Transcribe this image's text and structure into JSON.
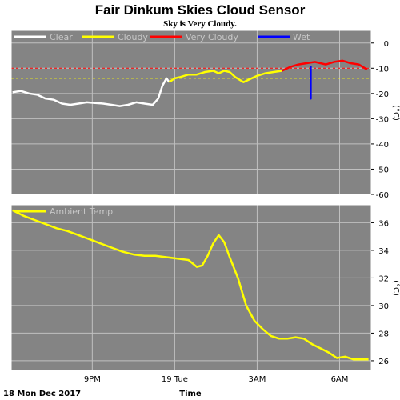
{
  "title": "Fair Dinkum Skies Cloud Sensor",
  "subtitle": "Sky is Very Cloudy.",
  "footer": {
    "date": "18 Mon Dec 2017",
    "xlabel": "Time"
  },
  "colors": {
    "plot_bg": "#848484",
    "grid": "#c0c0c0",
    "clear": "#ffffff",
    "cloudy": "#ffff00",
    "very_cloudy": "#ff0000",
    "wet": "#0000ff",
    "ambient": "#ffff00",
    "frame": "#ffffff"
  },
  "chart_data": [
    {
      "type": "line",
      "ylabel": "(°C)",
      "ylim": [
        -60,
        5
      ],
      "yticks": [
        0,
        -10,
        -20,
        -30,
        -40,
        -50,
        -60
      ],
      "xlim": [
        18.05,
        31.15
      ],
      "xticks": [
        {
          "x": 21,
          "label": "9PM"
        },
        {
          "x": 24,
          "label": "19 Tue"
        },
        {
          "x": 27,
          "label": "3AM"
        },
        {
          "x": 30,
          "label": "6AM"
        }
      ],
      "grid": true,
      "legend": "top-left",
      "threshold_lines": [
        {
          "y": -10,
          "color": "#ff0000"
        },
        {
          "y": -14,
          "color": "#ffff00"
        }
      ],
      "series": [
        {
          "name": "Clear",
          "color": "#ffffff",
          "values": [
            [
              18.1,
              -19.5
            ],
            [
              18.4,
              -19
            ],
            [
              18.7,
              -20
            ],
            [
              19,
              -20.5
            ],
            [
              19.3,
              -22
            ],
            [
              19.6,
              -22.5
            ],
            [
              19.9,
              -24
            ],
            [
              20.2,
              -24.5
            ],
            [
              20.5,
              -24
            ],
            [
              20.8,
              -23.5
            ],
            [
              21.1,
              -23.8
            ],
            [
              21.4,
              -24
            ],
            [
              21.7,
              -24.5
            ],
            [
              22,
              -25
            ],
            [
              22.3,
              -24.5
            ],
            [
              22.6,
              -23.5
            ],
            [
              22.9,
              -24
            ],
            [
              23.2,
              -24.5
            ],
            [
              23.4,
              -22
            ],
            [
              23.55,
              -17
            ],
            [
              23.7,
              -14
            ],
            [
              23.8,
              -15.5
            ]
          ]
        },
        {
          "name": "Cloudy",
          "color": "#ffff00",
          "values": [
            [
              23.8,
              -15.5
            ],
            [
              24,
              -14
            ],
            [
              24.2,
              -13.5
            ],
            [
              24.5,
              -12.5
            ],
            [
              24.8,
              -12.5
            ],
            [
              25.1,
              -11.5
            ],
            [
              25.4,
              -11
            ],
            [
              25.6,
              -12
            ],
            [
              25.8,
              -11
            ],
            [
              26,
              -11.5
            ],
            [
              26.2,
              -13.5
            ],
            [
              26.5,
              -15.5
            ],
            [
              26.8,
              -14
            ],
            [
              27,
              -13
            ],
            [
              27.3,
              -12
            ],
            [
              27.6,
              -11.5
            ],
            [
              27.9,
              -11
            ]
          ]
        },
        {
          "name": "Very Cloudy",
          "color": "#ff0000",
          "values": [
            [
              27.9,
              -11
            ],
            [
              28.2,
              -9.5
            ],
            [
              28.5,
              -8.5
            ],
            [
              28.8,
              -8
            ],
            [
              29.1,
              -7.5
            ],
            [
              29.3,
              -8
            ],
            [
              29.5,
              -8.5
            ],
            [
              29.8,
              -7.5
            ],
            [
              30.1,
              -7
            ],
            [
              30.4,
              -8
            ],
            [
              30.7,
              -8.5
            ],
            [
              31,
              -10.5
            ]
          ]
        },
        {
          "name": "Wet",
          "color": "#0000ff",
          "values": [
            [
              28.95,
              -9
            ],
            [
              28.95,
              -22
            ],
            [
              28.95,
              -10
            ]
          ]
        }
      ]
    },
    {
      "type": "line",
      "ylabel": "(°C)",
      "ylim": [
        25.3,
        37.3
      ],
      "yticks": [
        26,
        28,
        30,
        32,
        34,
        36
      ],
      "xlim": [
        18.05,
        31.15
      ],
      "xticks": [
        {
          "x": 21,
          "label": "9PM"
        },
        {
          "x": 24,
          "label": "19 Tue"
        },
        {
          "x": 27,
          "label": "3AM"
        },
        {
          "x": 30,
          "label": "6AM"
        }
      ],
      "grid": true,
      "legend": "top-left",
      "series": [
        {
          "name": "Ambient Temp",
          "color": "#ffff00",
          "values": [
            [
              18.1,
              36.9
            ],
            [
              18.5,
              36.5
            ],
            [
              18.9,
              36.2
            ],
            [
              19.3,
              35.9
            ],
            [
              19.7,
              35.6
            ],
            [
              20.1,
              35.4
            ],
            [
              20.5,
              35.1
            ],
            [
              20.9,
              34.8
            ],
            [
              21.3,
              34.5
            ],
            [
              21.7,
              34.2
            ],
            [
              22.1,
              33.9
            ],
            [
              22.5,
              33.7
            ],
            [
              22.9,
              33.6
            ],
            [
              23.3,
              33.6
            ],
            [
              23.7,
              33.5
            ],
            [
              24.1,
              33.4
            ],
            [
              24.5,
              33.3
            ],
            [
              24.8,
              32.8
            ],
            [
              25,
              32.9
            ],
            [
              25.2,
              33.6
            ],
            [
              25.4,
              34.5
            ],
            [
              25.6,
              35.1
            ],
            [
              25.8,
              34.6
            ],
            [
              26,
              33.5
            ],
            [
              26.3,
              32
            ],
            [
              26.6,
              30
            ],
            [
              26.9,
              28.9
            ],
            [
              27.2,
              28.3
            ],
            [
              27.5,
              27.8
            ],
            [
              27.8,
              27.6
            ],
            [
              28.1,
              27.6
            ],
            [
              28.4,
              27.7
            ],
            [
              28.7,
              27.6
            ],
            [
              29,
              27.2
            ],
            [
              29.3,
              26.9
            ],
            [
              29.6,
              26.6
            ],
            [
              29.9,
              26.2
            ],
            [
              30.2,
              26.3
            ],
            [
              30.5,
              26.1
            ],
            [
              30.8,
              26.1
            ],
            [
              31.05,
              26.1
            ]
          ]
        }
      ]
    }
  ]
}
